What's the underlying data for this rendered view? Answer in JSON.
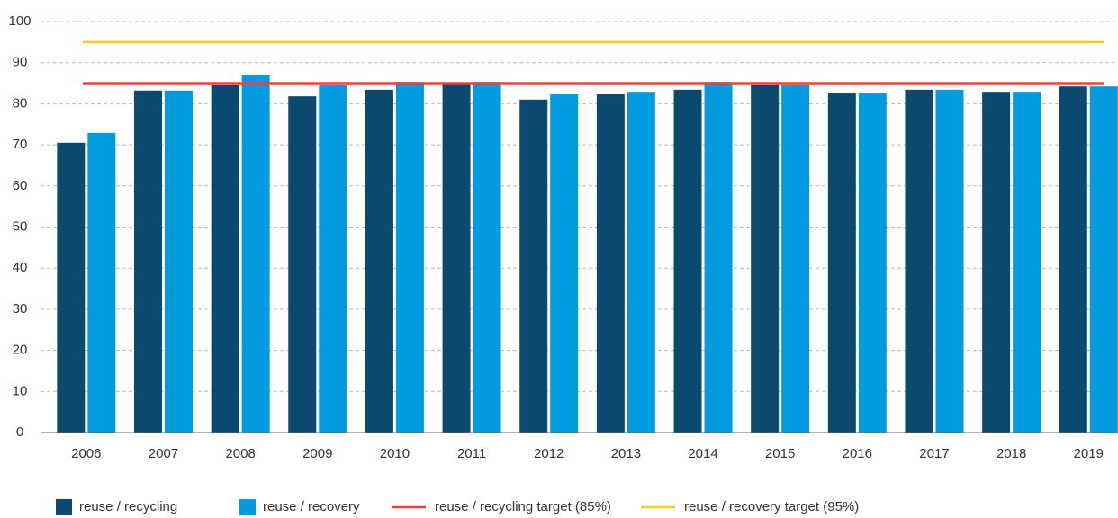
{
  "chart_data": {
    "type": "bar",
    "categories": [
      "2006",
      "2007",
      "2008",
      "2009",
      "2010",
      "2011",
      "2012",
      "2013",
      "2014",
      "2015",
      "2016",
      "2017",
      "2018",
      "2019"
    ],
    "series": [
      {
        "name": "reuse / recycling",
        "color": "#0b4a6e",
        "values": [
          70.5,
          83.2,
          84.5,
          81.8,
          83.4,
          84.9,
          81.0,
          82.3,
          83.4,
          84.7,
          82.7,
          83.4,
          82.9,
          84.2
        ]
      },
      {
        "name": "reuse / recovery",
        "color": "#039be0",
        "values": [
          72.9,
          83.2,
          87.1,
          84.5,
          85.3,
          85.3,
          82.3,
          82.9,
          85.3,
          84.7,
          82.7,
          83.4,
          82.9,
          84.2
        ]
      }
    ],
    "reference_lines": [
      {
        "name": "reuse / recycling target (85%)",
        "value": 85,
        "color": "#e8453c"
      },
      {
        "name": "reuse / recovery target (95%)",
        "value": 95,
        "color": "#f2cf1c"
      }
    ],
    "ylim": [
      0,
      100
    ],
    "yticks": [
      0,
      10,
      20,
      30,
      40,
      50,
      60,
      70,
      80,
      90,
      100
    ],
    "grid": true
  }
}
